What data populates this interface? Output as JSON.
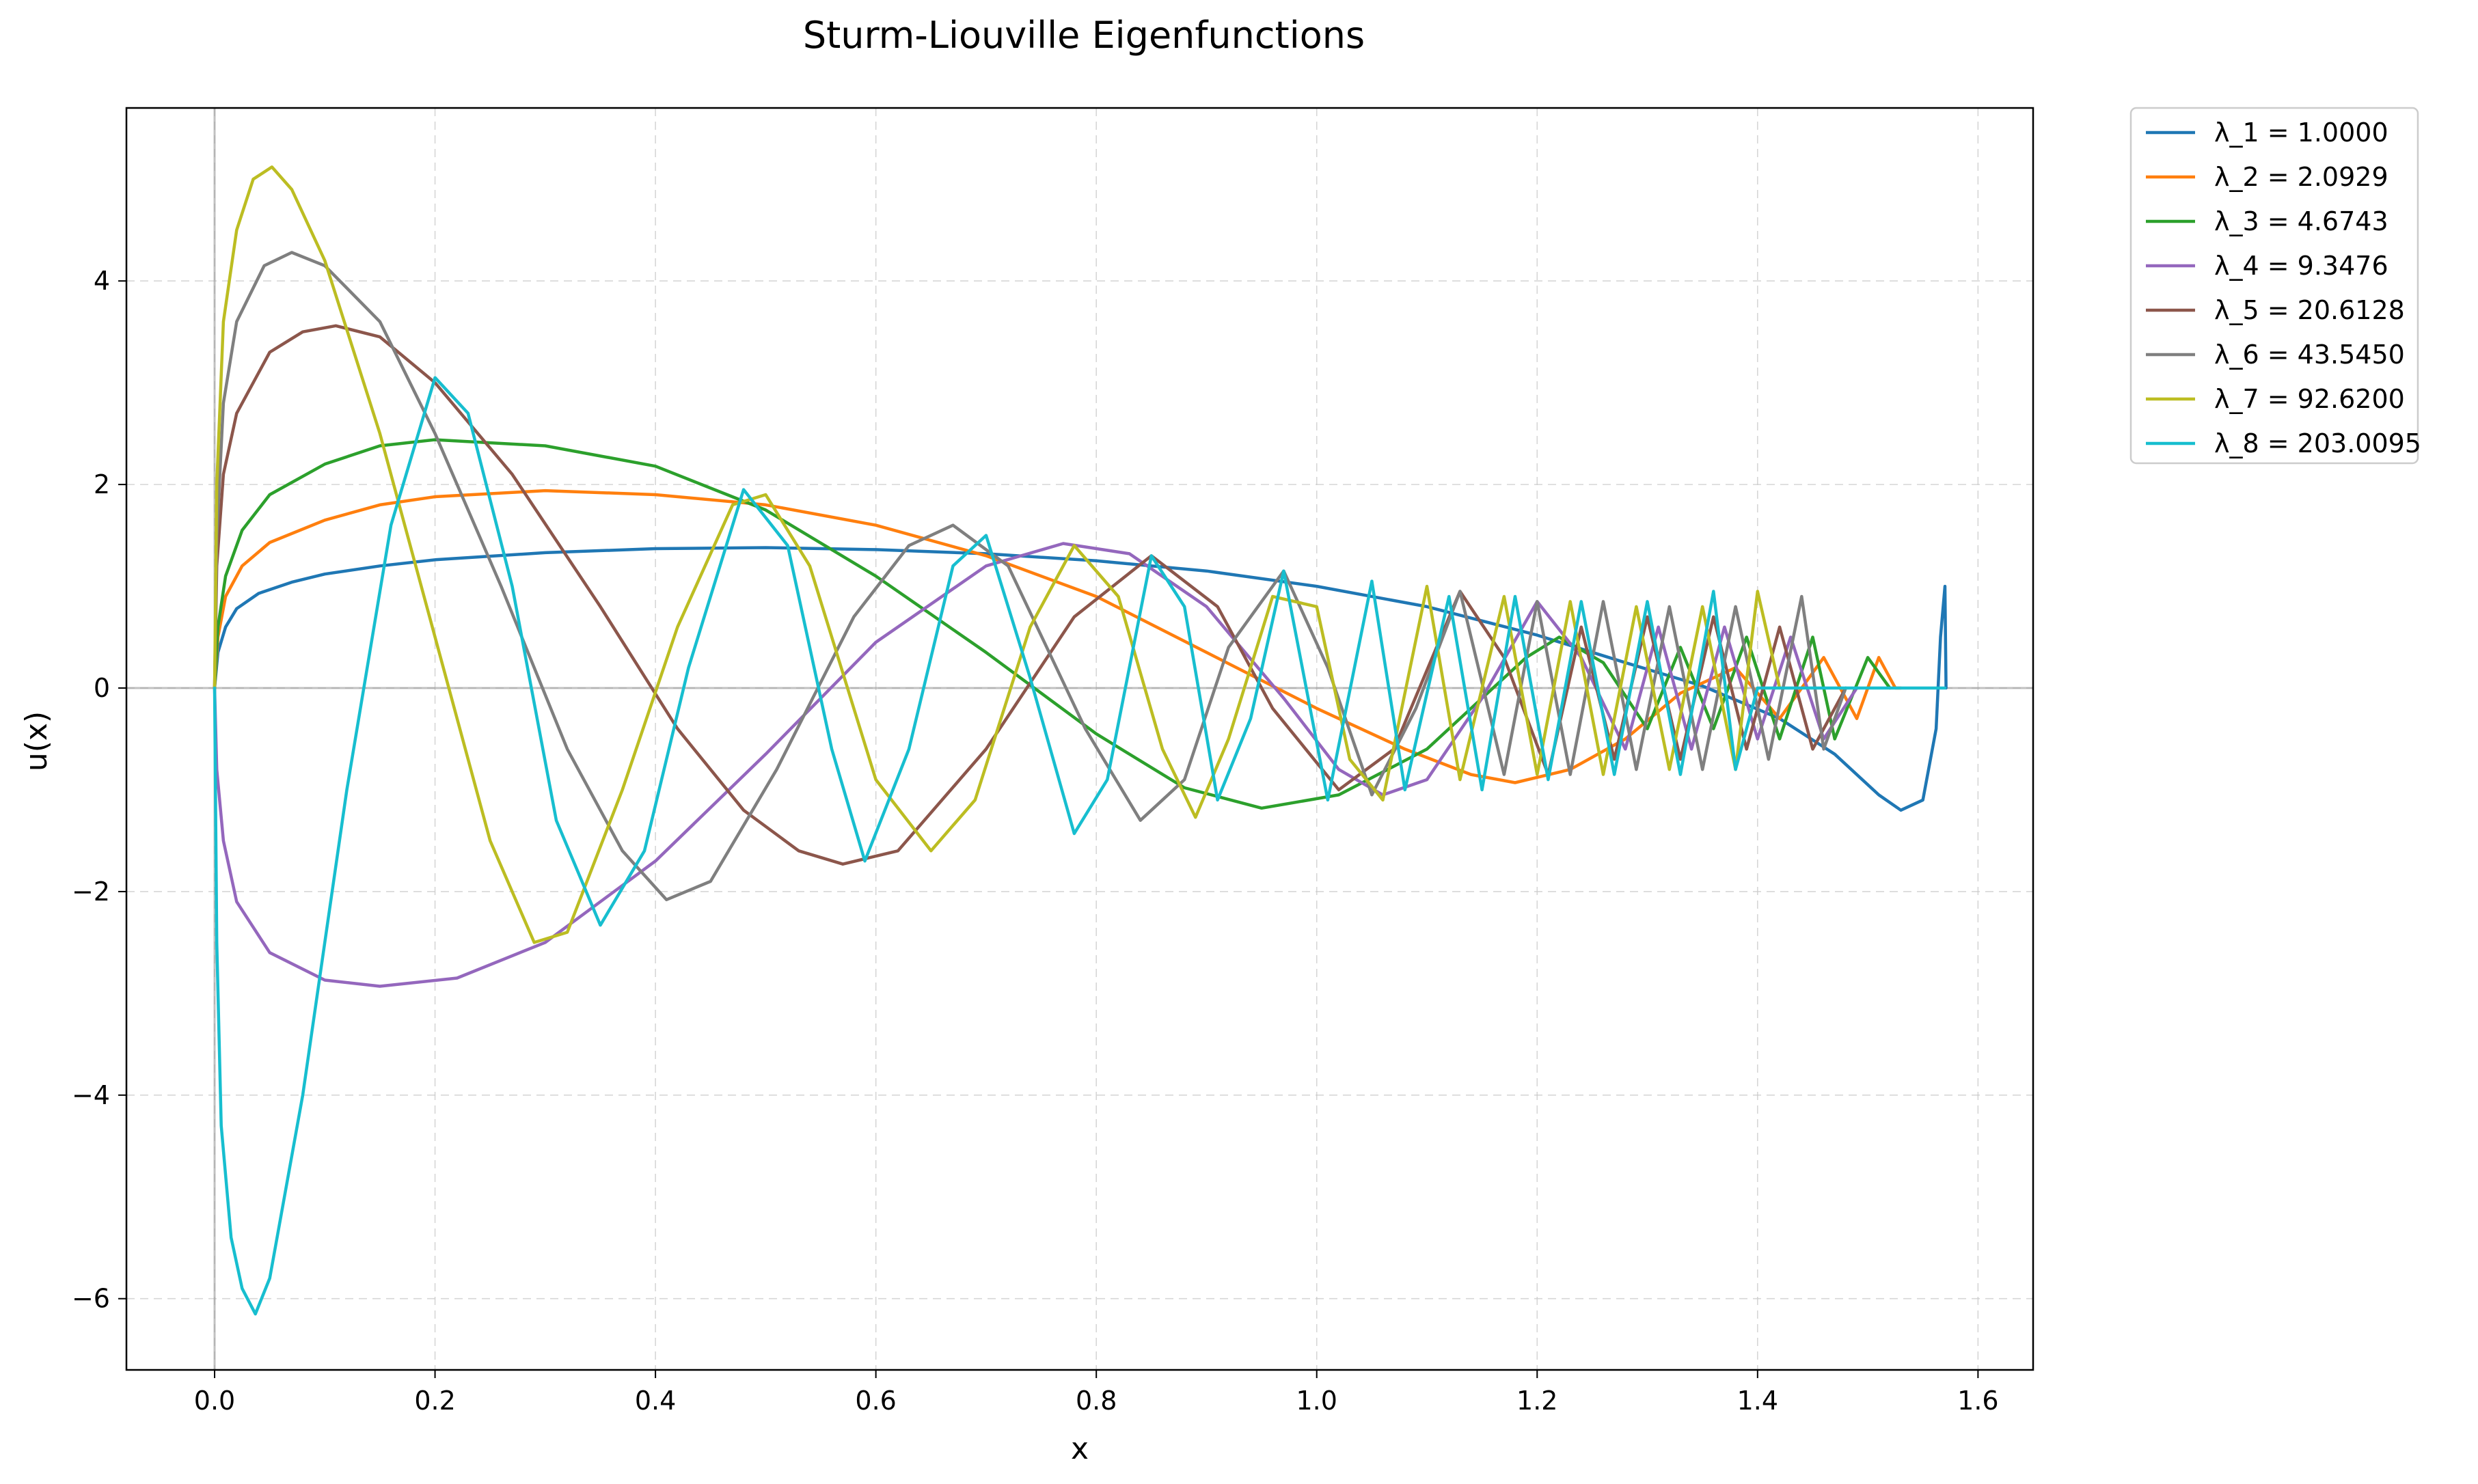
{
  "chart_data": {
    "type": "line",
    "title": "Sturm-Liouville Eigenfunctions",
    "xlabel": "x",
    "ylabel": "u(x)",
    "xlim": [
      -0.08,
      1.65
    ],
    "ylim": [
      -6.7,
      5.7
    ],
    "xticks": [
      0.0,
      0.2,
      0.4,
      0.6,
      0.8,
      1.0,
      1.2,
      1.4,
      1.6
    ],
    "xtick_labels": [
      "0.0",
      "0.2",
      "0.4",
      "0.6",
      "0.8",
      "1.0",
      "1.2",
      "1.4",
      "1.6"
    ],
    "yticks": [
      -6,
      -4,
      -2,
      0,
      2,
      4
    ],
    "ytick_labels": [
      "−6",
      "−4",
      "−2",
      "0",
      "2",
      "4"
    ],
    "grid": true,
    "legend_position": "outside-top-right",
    "series": [
      {
        "name": "λ_1 = 1.0000",
        "color": "#1f77b4",
        "points": [
          [
            0,
            0
          ],
          [
            0.003,
            0.35
          ],
          [
            0.01,
            0.6
          ],
          [
            0.02,
            0.78
          ],
          [
            0.04,
            0.93
          ],
          [
            0.07,
            1.04
          ],
          [
            0.1,
            1.12
          ],
          [
            0.15,
            1.2
          ],
          [
            0.2,
            1.26
          ],
          [
            0.3,
            1.33
          ],
          [
            0.4,
            1.37
          ],
          [
            0.5,
            1.38
          ],
          [
            0.6,
            1.36
          ],
          [
            0.7,
            1.32
          ],
          [
            0.8,
            1.25
          ],
          [
            0.9,
            1.15
          ],
          [
            1.0,
            1.0
          ],
          [
            1.1,
            0.8
          ],
          [
            1.2,
            0.52
          ],
          [
            1.28,
            0.25
          ],
          [
            1.35,
            0.02
          ],
          [
            1.42,
            -0.3
          ],
          [
            1.47,
            -0.65
          ],
          [
            1.51,
            -1.05
          ],
          [
            1.53,
            -1.2
          ],
          [
            1.55,
            -1.1
          ],
          [
            1.562,
            -0.4
          ],
          [
            1.566,
            0.5
          ],
          [
            1.57,
            1.0
          ],
          [
            1.571,
            0.0
          ]
        ]
      },
      {
        "name": "λ_2 = 2.0929",
        "color": "#ff7f0e",
        "points": [
          [
            0,
            0
          ],
          [
            0.003,
            0.5
          ],
          [
            0.01,
            0.9
          ],
          [
            0.025,
            1.2
          ],
          [
            0.05,
            1.43
          ],
          [
            0.1,
            1.65
          ],
          [
            0.15,
            1.8
          ],
          [
            0.2,
            1.88
          ],
          [
            0.3,
            1.94
          ],
          [
            0.4,
            1.9
          ],
          [
            0.5,
            1.8
          ],
          [
            0.6,
            1.6
          ],
          [
            0.7,
            1.3
          ],
          [
            0.8,
            0.9
          ],
          [
            0.9,
            0.35
          ],
          [
            1.0,
            -0.2
          ],
          [
            1.08,
            -0.6
          ],
          [
            1.14,
            -0.85
          ],
          [
            1.18,
            -0.93
          ],
          [
            1.23,
            -0.8
          ],
          [
            1.28,
            -0.5
          ],
          [
            1.33,
            -0.05
          ],
          [
            1.38,
            0.2
          ],
          [
            1.42,
            -0.3
          ],
          [
            1.46,
            0.3
          ],
          [
            1.49,
            -0.3
          ],
          [
            1.51,
            0.3
          ],
          [
            1.525,
            0.0
          ],
          [
            1.53,
            0.0
          ]
        ]
      },
      {
        "name": "λ_3 = 4.6743",
        "color": "#2ca02c",
        "points": [
          [
            0,
            0
          ],
          [
            0.003,
            0.6
          ],
          [
            0.01,
            1.1
          ],
          [
            0.025,
            1.55
          ],
          [
            0.05,
            1.9
          ],
          [
            0.1,
            2.2
          ],
          [
            0.15,
            2.38
          ],
          [
            0.2,
            2.44
          ],
          [
            0.3,
            2.38
          ],
          [
            0.4,
            2.18
          ],
          [
            0.5,
            1.75
          ],
          [
            0.6,
            1.1
          ],
          [
            0.7,
            0.35
          ],
          [
            0.8,
            -0.45
          ],
          [
            0.88,
            -0.98
          ],
          [
            0.95,
            -1.18
          ],
          [
            1.02,
            -1.05
          ],
          [
            1.1,
            -0.6
          ],
          [
            1.15,
            -0.1
          ],
          [
            1.19,
            0.3
          ],
          [
            1.22,
            0.5
          ],
          [
            1.26,
            0.25
          ],
          [
            1.3,
            -0.4
          ],
          [
            1.33,
            0.4
          ],
          [
            1.36,
            -0.4
          ],
          [
            1.39,
            0.5
          ],
          [
            1.42,
            -0.5
          ],
          [
            1.45,
            0.5
          ],
          [
            1.47,
            -0.5
          ],
          [
            1.5,
            0.3
          ],
          [
            1.52,
            0.0
          ]
        ]
      },
      {
        "name": "λ_4 = 9.3476",
        "color": "#9467bd",
        "points": [
          [
            0,
            0
          ],
          [
            0.002,
            -0.8
          ],
          [
            0.008,
            -1.5
          ],
          [
            0.02,
            -2.1
          ],
          [
            0.05,
            -2.6
          ],
          [
            0.1,
            -2.87
          ],
          [
            0.15,
            -2.93
          ],
          [
            0.22,
            -2.85
          ],
          [
            0.3,
            -2.5
          ],
          [
            0.4,
            -1.7
          ],
          [
            0.5,
            -0.65
          ],
          [
            0.6,
            0.45
          ],
          [
            0.7,
            1.2
          ],
          [
            0.77,
            1.42
          ],
          [
            0.83,
            1.32
          ],
          [
            0.9,
            0.8
          ],
          [
            0.97,
            -0.1
          ],
          [
            1.02,
            -0.8
          ],
          [
            1.06,
            -1.05
          ],
          [
            1.1,
            -0.9
          ],
          [
            1.15,
            -0.1
          ],
          [
            1.2,
            0.85
          ],
          [
            1.24,
            0.3
          ],
          [
            1.28,
            -0.6
          ],
          [
            1.31,
            0.6
          ],
          [
            1.34,
            -0.6
          ],
          [
            1.37,
            0.6
          ],
          [
            1.4,
            -0.5
          ],
          [
            1.43,
            0.5
          ],
          [
            1.46,
            -0.5
          ],
          [
            1.49,
            0.0
          ]
        ]
      },
      {
        "name": "λ_5 = 20.6128",
        "color": "#8c564b",
        "points": [
          [
            0,
            0
          ],
          [
            0.002,
            1.2
          ],
          [
            0.008,
            2.1
          ],
          [
            0.02,
            2.7
          ],
          [
            0.05,
            3.3
          ],
          [
            0.08,
            3.5
          ],
          [
            0.11,
            3.56
          ],
          [
            0.15,
            3.45
          ],
          [
            0.2,
            3.0
          ],
          [
            0.27,
            2.1
          ],
          [
            0.35,
            0.8
          ],
          [
            0.42,
            -0.4
          ],
          [
            0.48,
            -1.2
          ],
          [
            0.53,
            -1.6
          ],
          [
            0.57,
            -1.73
          ],
          [
            0.62,
            -1.6
          ],
          [
            0.7,
            -0.6
          ],
          [
            0.78,
            0.7
          ],
          [
            0.85,
            1.3
          ],
          [
            0.91,
            0.8
          ],
          [
            0.96,
            -0.2
          ],
          [
            1.02,
            -1.0
          ],
          [
            1.07,
            -0.6
          ],
          [
            1.13,
            0.95
          ],
          [
            1.17,
            0.3
          ],
          [
            1.21,
            -0.85
          ],
          [
            1.24,
            0.6
          ],
          [
            1.27,
            -0.7
          ],
          [
            1.3,
            0.7
          ],
          [
            1.33,
            -0.7
          ],
          [
            1.36,
            0.7
          ],
          [
            1.39,
            -0.6
          ],
          [
            1.42,
            0.6
          ],
          [
            1.45,
            -0.6
          ],
          [
            1.48,
            0.0
          ]
        ]
      },
      {
        "name": "λ_6 = 43.5450",
        "color": "#7f7f7f",
        "points": [
          [
            0,
            0
          ],
          [
            0.002,
            1.5
          ],
          [
            0.008,
            2.8
          ],
          [
            0.02,
            3.6
          ],
          [
            0.045,
            4.15
          ],
          [
            0.07,
            4.28
          ],
          [
            0.1,
            4.15
          ],
          [
            0.15,
            3.6
          ],
          [
            0.2,
            2.5
          ],
          [
            0.26,
            1.0
          ],
          [
            0.32,
            -0.6
          ],
          [
            0.37,
            -1.6
          ],
          [
            0.41,
            -2.08
          ],
          [
            0.45,
            -1.9
          ],
          [
            0.51,
            -0.8
          ],
          [
            0.58,
            0.7
          ],
          [
            0.63,
            1.4
          ],
          [
            0.67,
            1.6
          ],
          [
            0.72,
            1.2
          ],
          [
            0.79,
            -0.4
          ],
          [
            0.84,
            -1.3
          ],
          [
            0.88,
            -0.9
          ],
          [
            0.92,
            0.4
          ],
          [
            0.97,
            1.15
          ],
          [
            1.01,
            0.2
          ],
          [
            1.05,
            -1.05
          ],
          [
            1.09,
            -0.2
          ],
          [
            1.13,
            0.95
          ],
          [
            1.17,
            -0.85
          ],
          [
            1.2,
            0.85
          ],
          [
            1.23,
            -0.85
          ],
          [
            1.26,
            0.85
          ],
          [
            1.29,
            -0.8
          ],
          [
            1.32,
            0.8
          ],
          [
            1.35,
            -0.8
          ],
          [
            1.38,
            0.8
          ],
          [
            1.41,
            -0.7
          ],
          [
            1.44,
            0.9
          ],
          [
            1.46,
            -0.6
          ],
          [
            1.48,
            0.0
          ]
        ]
      },
      {
        "name": "λ_7 = 92.6200",
        "color": "#bcbd22",
        "points": [
          [
            0,
            0
          ],
          [
            0.002,
            2.0
          ],
          [
            0.008,
            3.6
          ],
          [
            0.02,
            4.5
          ],
          [
            0.035,
            5.0
          ],
          [
            0.052,
            5.12
          ],
          [
            0.07,
            4.9
          ],
          [
            0.1,
            4.2
          ],
          [
            0.15,
            2.5
          ],
          [
            0.2,
            0.5
          ],
          [
            0.25,
            -1.5
          ],
          [
            0.29,
            -2.5
          ],
          [
            0.32,
            -2.4
          ],
          [
            0.37,
            -1.0
          ],
          [
            0.42,
            0.6
          ],
          [
            0.47,
            1.8
          ],
          [
            0.5,
            1.9
          ],
          [
            0.54,
            1.2
          ],
          [
            0.6,
            -0.9
          ],
          [
            0.65,
            -1.6
          ],
          [
            0.69,
            -1.1
          ],
          [
            0.74,
            0.6
          ],
          [
            0.78,
            1.4
          ],
          [
            0.82,
            0.9
          ],
          [
            0.86,
            -0.6
          ],
          [
            0.89,
            -1.27
          ],
          [
            0.92,
            -0.5
          ],
          [
            0.96,
            0.9
          ],
          [
            1.0,
            0.8
          ],
          [
            1.03,
            -0.7
          ],
          [
            1.06,
            -1.1
          ],
          [
            1.1,
            1.0
          ],
          [
            1.13,
            -0.9
          ],
          [
            1.17,
            0.9
          ],
          [
            1.2,
            -0.85
          ],
          [
            1.23,
            0.85
          ],
          [
            1.26,
            -0.85
          ],
          [
            1.29,
            0.8
          ],
          [
            1.32,
            -0.8
          ],
          [
            1.35,
            0.8
          ],
          [
            1.38,
            -0.8
          ],
          [
            1.4,
            0.95
          ],
          [
            1.42,
            0.0
          ]
        ]
      },
      {
        "name": "λ_8 = 203.0095",
        "color": "#17becf",
        "points": [
          [
            0,
            0
          ],
          [
            0.002,
            -2.5
          ],
          [
            0.006,
            -4.3
          ],
          [
            0.015,
            -5.4
          ],
          [
            0.025,
            -5.9
          ],
          [
            0.037,
            -6.15
          ],
          [
            0.05,
            -5.8
          ],
          [
            0.08,
            -4.0
          ],
          [
            0.12,
            -1.0
          ],
          [
            0.16,
            1.6
          ],
          [
            0.2,
            3.05
          ],
          [
            0.23,
            2.7
          ],
          [
            0.27,
            1.0
          ],
          [
            0.31,
            -1.3
          ],
          [
            0.35,
            -2.33
          ],
          [
            0.39,
            -1.6
          ],
          [
            0.43,
            0.2
          ],
          [
            0.48,
            1.95
          ],
          [
            0.52,
            1.4
          ],
          [
            0.56,
            -0.6
          ],
          [
            0.59,
            -1.7
          ],
          [
            0.63,
            -0.6
          ],
          [
            0.67,
            1.2
          ],
          [
            0.7,
            1.5
          ],
          [
            0.74,
            0.1
          ],
          [
            0.78,
            -1.43
          ],
          [
            0.81,
            -0.9
          ],
          [
            0.85,
            1.3
          ],
          [
            0.88,
            0.8
          ],
          [
            0.91,
            -1.1
          ],
          [
            0.94,
            -0.3
          ],
          [
            0.97,
            1.15
          ],
          [
            1.01,
            -1.1
          ],
          [
            1.05,
            1.05
          ],
          [
            1.08,
            -1.0
          ],
          [
            1.12,
            0.9
          ],
          [
            1.15,
            -1.0
          ],
          [
            1.18,
            0.9
          ],
          [
            1.21,
            -0.9
          ],
          [
            1.24,
            0.85
          ],
          [
            1.27,
            -0.85
          ],
          [
            1.3,
            0.85
          ],
          [
            1.33,
            -0.85
          ],
          [
            1.36,
            0.95
          ],
          [
            1.38,
            -0.8
          ],
          [
            1.4,
            0.0
          ],
          [
            1.57,
            0.0
          ]
        ]
      }
    ]
  }
}
